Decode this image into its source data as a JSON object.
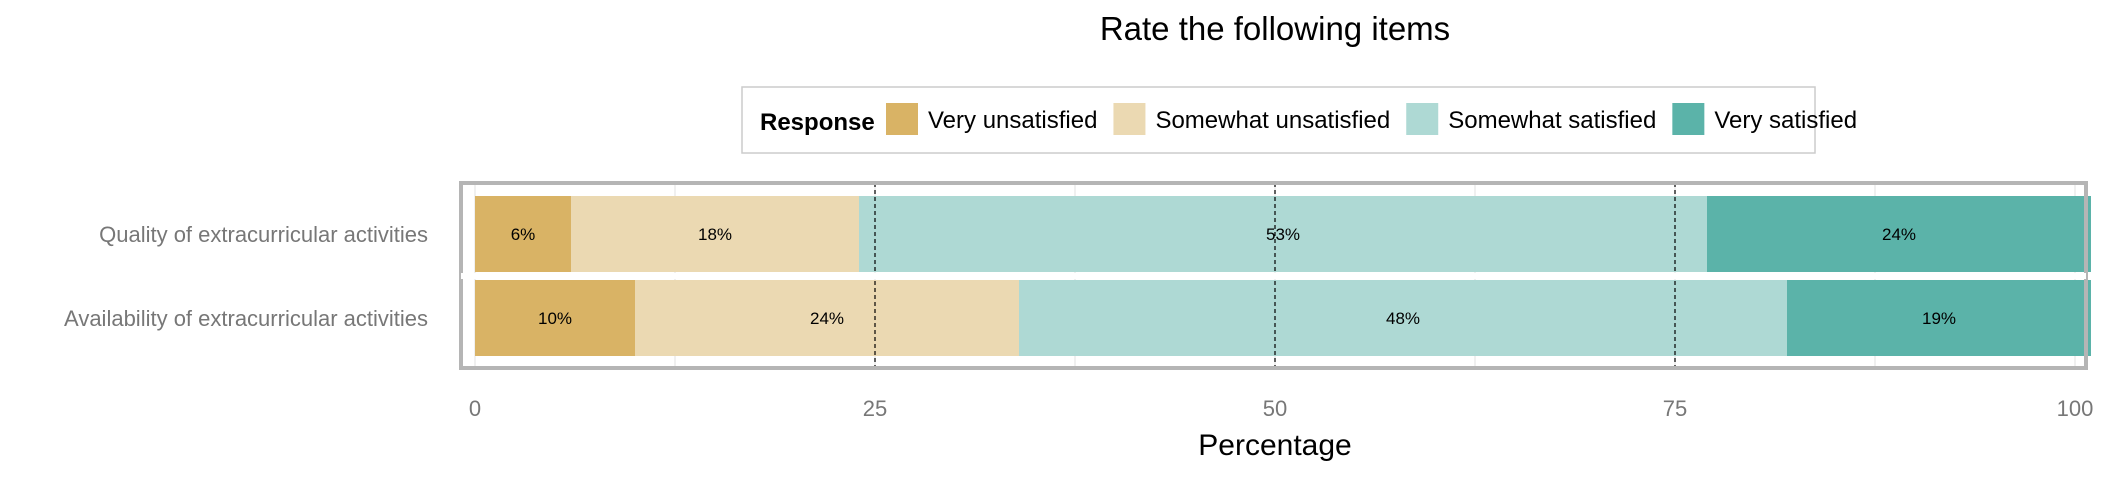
{
  "chart_data": {
    "type": "bar",
    "orientation": "horizontal",
    "stacked": true,
    "title": "Rate the following items",
    "xlabel": "Percentage",
    "ylabel": "",
    "xlim": [
      0,
      100
    ],
    "x_ticks": [
      0,
      25,
      50,
      75,
      100
    ],
    "reference_lines": [
      25,
      50,
      75
    ],
    "grid": true,
    "legend": {
      "title": "Response",
      "position": "top"
    },
    "categories": [
      "Quality of extracurricular activities",
      "Availability of extracurricular activities"
    ],
    "series": [
      {
        "name": "Very unsatisfied",
        "color": "#D9B365",
        "values": [
          6,
          10
        ],
        "labels": [
          "6%",
          "10%"
        ]
      },
      {
        "name": "Somewhat unsatisfied",
        "color": "#EBD9B2",
        "values": [
          18,
          24
        ],
        "labels": [
          "18%",
          "24%"
        ]
      },
      {
        "name": "Somewhat satisfied",
        "color": "#AED9D4",
        "values": [
          53,
          48
        ],
        "labels": [
          "53%",
          "48%"
        ]
      },
      {
        "name": "Very satisfied",
        "color": "#5BB3A9",
        "values": [
          24,
          19
        ],
        "labels": [
          "24%",
          "19%"
        ]
      }
    ]
  }
}
